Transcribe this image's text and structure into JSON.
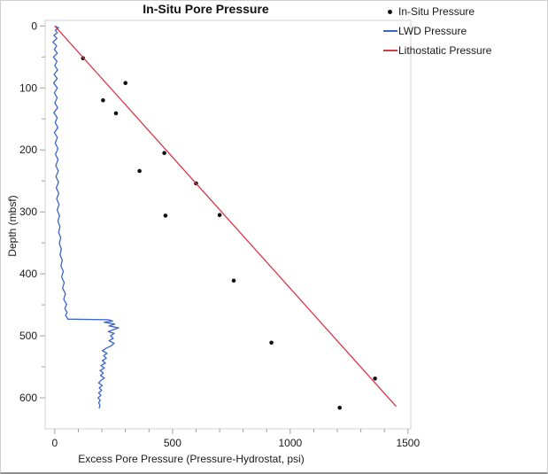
{
  "window_title": "In-Situ Pore Pressure",
  "colors": {
    "scatter": "#111111",
    "lwd_line": "#3b64c8",
    "lithostatic_line": "#d9374a",
    "frame": "#d2d2d2",
    "tick": "#a0a0a0",
    "text": "#1a1a1a"
  },
  "legend": {
    "items": [
      {
        "label": "In-Situ Pressure",
        "marker": "dot-icon",
        "color": "#111111"
      },
      {
        "label": "LWD Pressure",
        "marker": "line-icon",
        "color": "#3b64c8"
      },
      {
        "label": "Lithostatic Pressure",
        "marker": "line-icon",
        "color": "#d9374a"
      }
    ]
  },
  "chart_data": {
    "type": "scatter",
    "title": "In-Situ Pore Pressure",
    "xlabel": "Excess Pore Pressure (Pressure-Hydrostat, psi)",
    "ylabel": "Depth (mbsf)",
    "xlim": [
      -41,
      1512
    ],
    "ylim": [
      -9,
      650
    ],
    "y_inverted": true,
    "grid": false,
    "legend_position": "top-right",
    "x_major_ticks": [
      0,
      500,
      1000,
      1500
    ],
    "x_minor_step": 100,
    "y_major_ticks": [
      0,
      100,
      200,
      300,
      400,
      500,
      600
    ],
    "y_minor_step": 50,
    "series": [
      {
        "name": "In-Situ Pressure",
        "type": "scatter",
        "color": "#111111",
        "points": [
          [
            120,
            52
          ],
          [
            300,
            92
          ],
          [
            205,
            120
          ],
          [
            260,
            141
          ],
          [
            465,
            205
          ],
          [
            360,
            234
          ],
          [
            600,
            254
          ],
          [
            470,
            306
          ],
          [
            700,
            305
          ],
          [
            760,
            411
          ],
          [
            920,
            511
          ],
          [
            1360,
            569
          ],
          [
            1210,
            616
          ]
        ]
      },
      {
        "name": "LWD Pressure",
        "type": "line",
        "color": "#3b64c8",
        "points": [
          [
            0,
            0
          ],
          [
            16,
            3
          ],
          [
            2,
            7
          ],
          [
            11,
            11
          ],
          [
            -4,
            15
          ],
          [
            9,
            20
          ],
          [
            -8,
            26
          ],
          [
            8,
            32
          ],
          [
            -2,
            38
          ],
          [
            11,
            44
          ],
          [
            -6,
            50
          ],
          [
            9,
            57
          ],
          [
            0,
            64
          ],
          [
            12,
            71
          ],
          [
            -3,
            78
          ],
          [
            10,
            85
          ],
          [
            -5,
            92
          ],
          [
            11,
            100
          ],
          [
            -2,
            108
          ],
          [
            10,
            116
          ],
          [
            0,
            124
          ],
          [
            12,
            132
          ],
          [
            -4,
            140
          ],
          [
            10,
            148
          ],
          [
            2,
            156
          ],
          [
            13,
            164
          ],
          [
            -2,
            172
          ],
          [
            11,
            180
          ],
          [
            2,
            189
          ],
          [
            13,
            198
          ],
          [
            3,
            207
          ],
          [
            14,
            216
          ],
          [
            4,
            225
          ],
          [
            15,
            234
          ],
          [
            5,
            243
          ],
          [
            16,
            252
          ],
          [
            6,
            261
          ],
          [
            17,
            270
          ],
          [
            8,
            279
          ],
          [
            18,
            288
          ],
          [
            10,
            297
          ],
          [
            20,
            306
          ],
          [
            13,
            315
          ],
          [
            22,
            324
          ],
          [
            16,
            333
          ],
          [
            25,
            342
          ],
          [
            19,
            351
          ],
          [
            28,
            360
          ],
          [
            22,
            369
          ],
          [
            32,
            378
          ],
          [
            26,
            387
          ],
          [
            36,
            396
          ],
          [
            29,
            405
          ],
          [
            40,
            414
          ],
          [
            33,
            423
          ],
          [
            45,
            432
          ],
          [
            38,
            441
          ],
          [
            50,
            449
          ],
          [
            43,
            456
          ],
          [
            52,
            462
          ],
          [
            46,
            467
          ],
          [
            53,
            471
          ],
          [
            55,
            473
          ],
          [
            228,
            474
          ],
          [
            245,
            476
          ],
          [
            210,
            478
          ],
          [
            255,
            481
          ],
          [
            230,
            484
          ],
          [
            271,
            487
          ],
          [
            248,
            490
          ],
          [
            228,
            493
          ],
          [
            252,
            496
          ],
          [
            237,
            500
          ],
          [
            248,
            504
          ],
          [
            230,
            508
          ],
          [
            252,
            512
          ],
          [
            240,
            516
          ],
          [
            218,
            520
          ],
          [
            202,
            524
          ],
          [
            222,
            528
          ],
          [
            207,
            532
          ],
          [
            219,
            536
          ],
          [
            202,
            540
          ],
          [
            215,
            544
          ],
          [
            196,
            548
          ],
          [
            211,
            552
          ],
          [
            192,
            556
          ],
          [
            206,
            560
          ],
          [
            194,
            564
          ],
          [
            210,
            568
          ],
          [
            196,
            572
          ],
          [
            186,
            576
          ],
          [
            201,
            580
          ],
          [
            189,
            584
          ],
          [
            199,
            588
          ],
          [
            186,
            592
          ],
          [
            196,
            596
          ],
          [
            184,
            600
          ],
          [
            193,
            604
          ],
          [
            186,
            608
          ],
          [
            192,
            612
          ],
          [
            188,
            617
          ]
        ]
      },
      {
        "name": "Lithostatic Pressure",
        "type": "line",
        "color": "#d9374a",
        "points": [
          [
            0,
            0
          ],
          [
            1450,
            614
          ]
        ]
      }
    ]
  }
}
